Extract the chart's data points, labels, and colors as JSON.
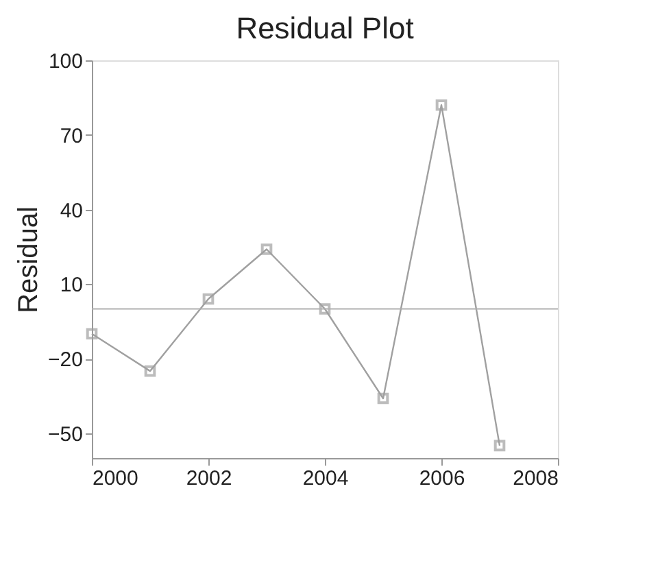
{
  "chart_data": {
    "type": "line",
    "title": "Residual Plot",
    "ylabel": "Residual",
    "x": [
      2000,
      2001,
      2002,
      2003,
      2004,
      2005,
      2006,
      2007
    ],
    "series": [
      {
        "color": "#a0a0a0",
        "values": [
          -10,
          -25,
          4,
          24,
          0,
          -36,
          82,
          -55
        ]
      }
    ],
    "xlim": [
      2000,
      2008
    ],
    "xticks": [
      2000,
      2002,
      2004,
      2006,
      2008
    ],
    "ylim": [
      -60,
      100
    ],
    "yticks": [
      -50,
      -20,
      10,
      40,
      70,
      100
    ],
    "ref_lines": [
      {
        "axis": "y",
        "value": 0,
        "color": "#b0b0b0"
      }
    ],
    "marker": "square",
    "grid": false
  }
}
